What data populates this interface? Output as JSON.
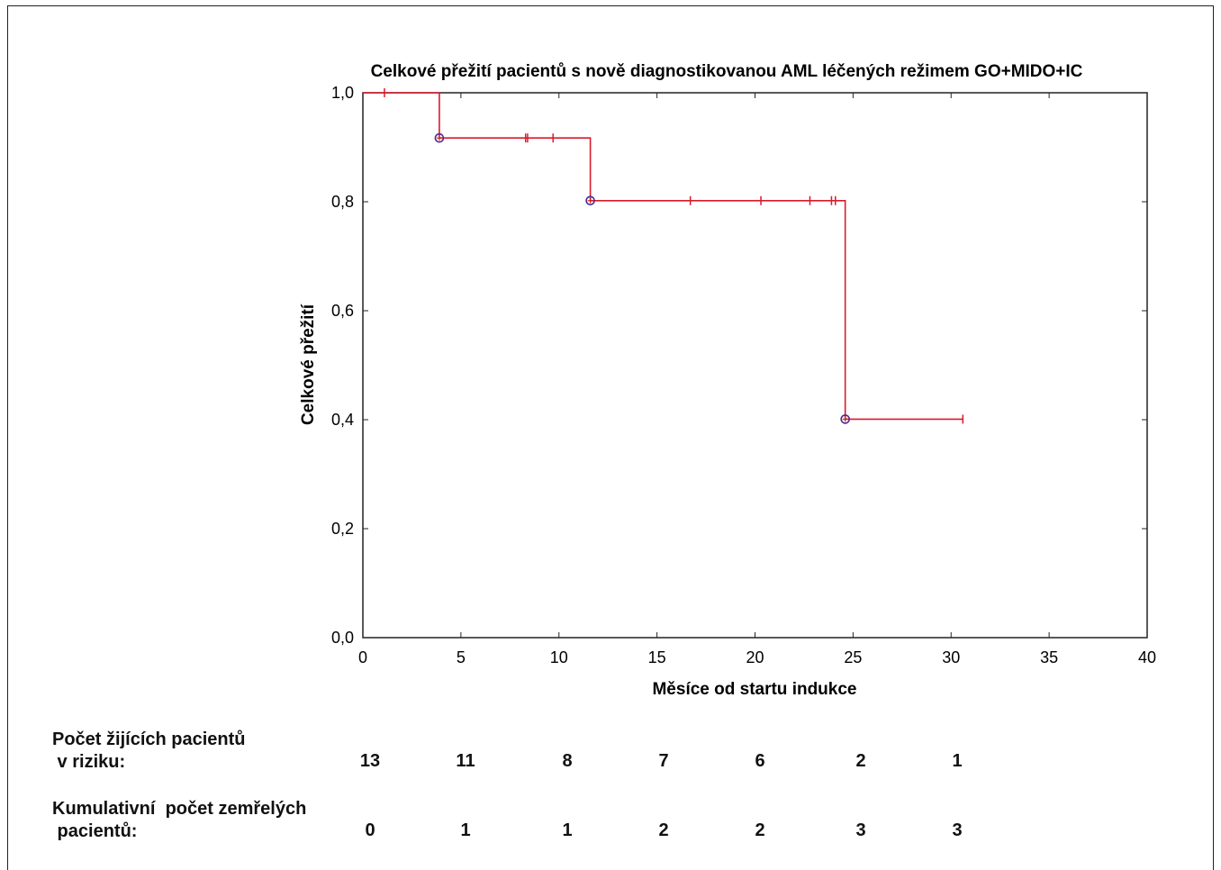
{
  "chart_data": {
    "type": "line",
    "subtype": "kaplan-meier",
    "title": "Celkové přežití pacientů s nově diagnostikovanou AML léčených režimem GO+MIDO+IC",
    "xlabel": "Měsíce od startu indukce",
    "ylabel": "Celkové přežití",
    "xlim": [
      0,
      40
    ],
    "ylim": [
      0,
      1
    ],
    "x_ticks": [
      0,
      5,
      10,
      15,
      20,
      25,
      30,
      35,
      40
    ],
    "x_tick_labels": [
      "0",
      "5",
      "10",
      "15",
      "20",
      "25",
      "30",
      "35",
      "40"
    ],
    "y_ticks": [
      0,
      0.2,
      0.4,
      0.6,
      0.8,
      1.0
    ],
    "y_tick_labels": [
      "0,0",
      "0,2",
      "0,4",
      "0,6",
      "0,8",
      "1,0"
    ],
    "grid": false,
    "line_color": "#d81b2a",
    "event_color": "#4b2c8a",
    "steps": [
      {
        "x": 0,
        "y": 1.0
      },
      {
        "x": 3.9,
        "y": 0.917
      },
      {
        "x": 11.6,
        "y": 0.802
      },
      {
        "x": 24.6,
        "y": 0.401
      },
      {
        "x": 30.6,
        "y": 0.401
      }
    ],
    "events": [
      {
        "x": 3.9,
        "y": 0.917
      },
      {
        "x": 11.6,
        "y": 0.802
      },
      {
        "x": 24.6,
        "y": 0.401
      }
    ],
    "censored": [
      {
        "x": 1.1,
        "y": 1.0
      },
      {
        "x": 8.3,
        "y": 0.917
      },
      {
        "x": 8.4,
        "y": 0.917
      },
      {
        "x": 9.7,
        "y": 0.917
      },
      {
        "x": 16.7,
        "y": 0.802
      },
      {
        "x": 20.3,
        "y": 0.802
      },
      {
        "x": 22.8,
        "y": 0.802
      },
      {
        "x": 23.9,
        "y": 0.802
      },
      {
        "x": 24.1,
        "y": 0.802
      },
      {
        "x": 30.6,
        "y": 0.401
      }
    ]
  },
  "risk_table": {
    "at_risk_label": "Počet žijících pacientů\n v riziku:",
    "at_risk_values": [
      "13",
      "11",
      "8",
      "7",
      "6",
      "2",
      "1"
    ],
    "deaths_label": "Kumulativní  počet zemřelých\n pacientů:",
    "deaths_values": [
      "0",
      "1",
      "1",
      "2",
      "2",
      "3",
      "3"
    ]
  }
}
